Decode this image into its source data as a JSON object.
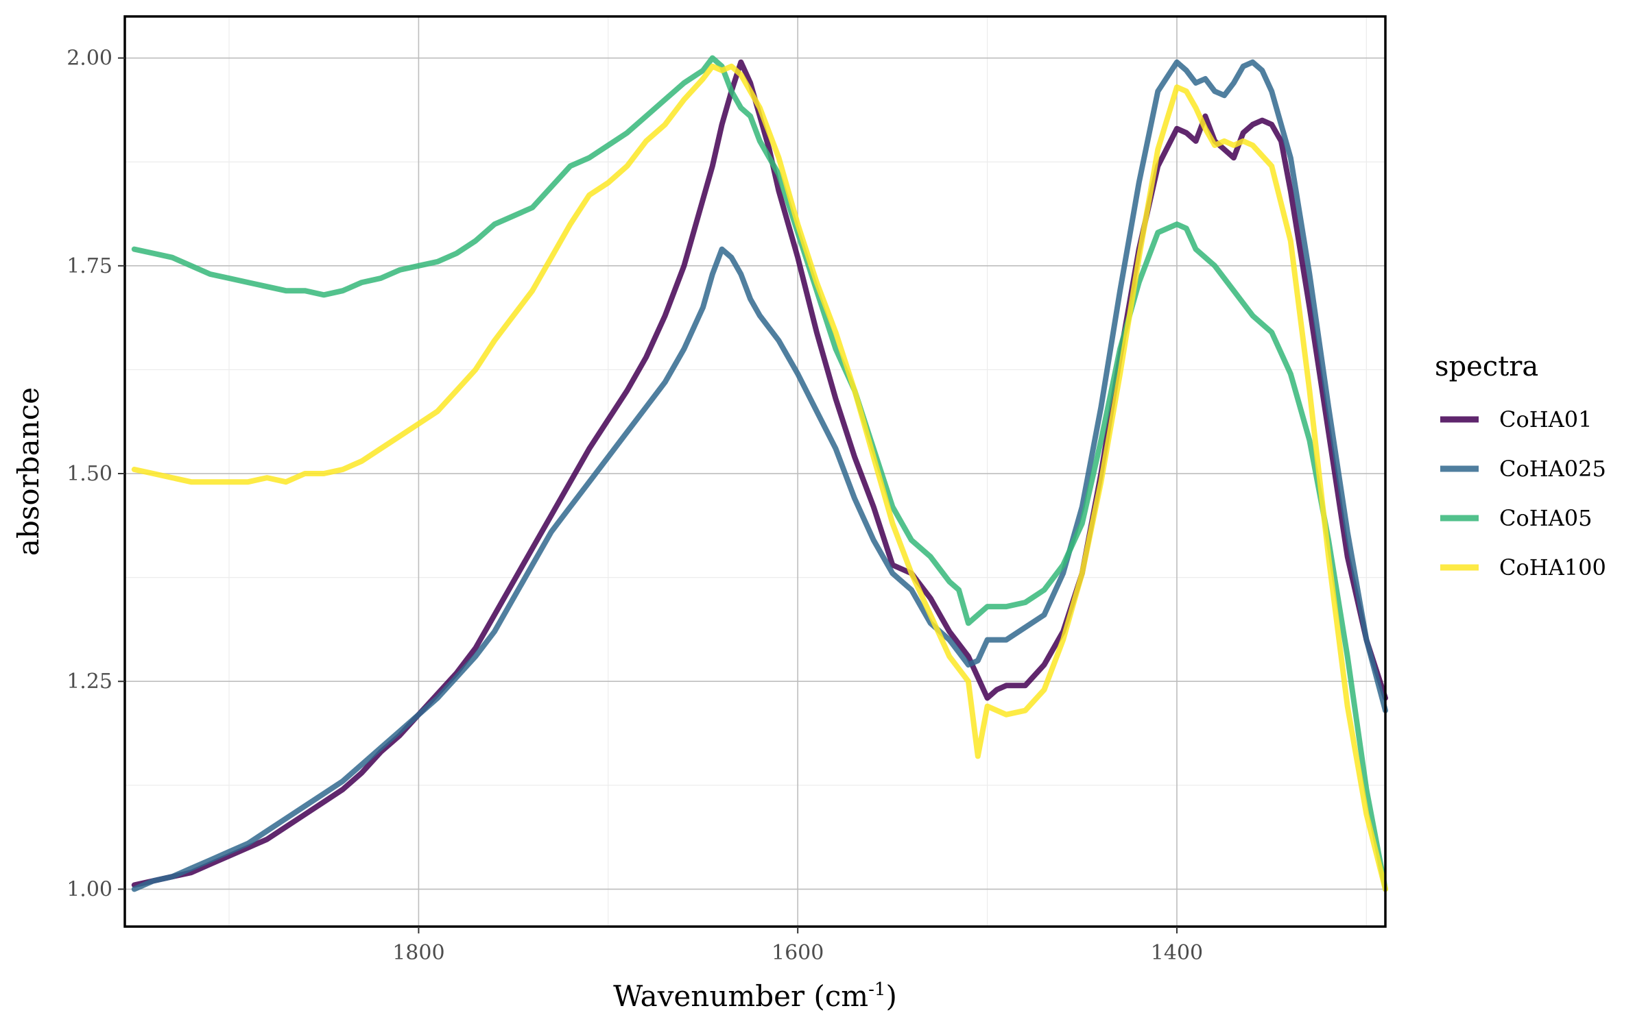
{
  "chart_data": {
    "type": "line",
    "title": "",
    "xlabel": "Wavenumber (cm",
    "xlabel_sup": "-1",
    "xlabel_suffix": ")",
    "ylabel": "absorbance",
    "xlim": [
      1955,
      1290
    ],
    "ylim": [
      0.955,
      2.05
    ],
    "x_reversed": true,
    "x_ticks": [
      1800,
      1600,
      1400
    ],
    "x_tick_labels": [
      "1800",
      "1600",
      "1400"
    ],
    "y_ticks": [
      1.0,
      1.25,
      1.5,
      1.75,
      2.0
    ],
    "y_tick_labels": [
      "1.00",
      "1.25",
      "1.50",
      "1.75",
      "2.00"
    ],
    "grid": true,
    "legend": {
      "title": "spectra",
      "position": "right"
    },
    "series": [
      {
        "name": "CoHA01",
        "color": "#440154",
        "points": [
          [
            1950,
            1.005
          ],
          [
            1940,
            1.01
          ],
          [
            1930,
            1.015
          ],
          [
            1920,
            1.02
          ],
          [
            1910,
            1.03
          ],
          [
            1900,
            1.04
          ],
          [
            1890,
            1.05
          ],
          [
            1880,
            1.06
          ],
          [
            1870,
            1.075
          ],
          [
            1860,
            1.09
          ],
          [
            1850,
            1.105
          ],
          [
            1840,
            1.12
          ],
          [
            1830,
            1.14
          ],
          [
            1820,
            1.165
          ],
          [
            1810,
            1.185
          ],
          [
            1800,
            1.21
          ],
          [
            1790,
            1.235
          ],
          [
            1780,
            1.26
          ],
          [
            1770,
            1.29
          ],
          [
            1760,
            1.33
          ],
          [
            1750,
            1.37
          ],
          [
            1740,
            1.41
          ],
          [
            1730,
            1.45
          ],
          [
            1720,
            1.49
          ],
          [
            1710,
            1.53
          ],
          [
            1700,
            1.565
          ],
          [
            1690,
            1.6
          ],
          [
            1680,
            1.64
          ],
          [
            1670,
            1.69
          ],
          [
            1660,
            1.75
          ],
          [
            1650,
            1.83
          ],
          [
            1645,
            1.87
          ],
          [
            1640,
            1.92
          ],
          [
            1635,
            1.96
          ],
          [
            1630,
            1.995
          ],
          [
            1625,
            1.97
          ],
          [
            1620,
            1.93
          ],
          [
            1615,
            1.89
          ],
          [
            1610,
            1.84
          ],
          [
            1600,
            1.76
          ],
          [
            1590,
            1.67
          ],
          [
            1580,
            1.59
          ],
          [
            1570,
            1.52
          ],
          [
            1560,
            1.46
          ],
          [
            1550,
            1.39
          ],
          [
            1540,
            1.38
          ],
          [
            1530,
            1.35
          ],
          [
            1520,
            1.31
          ],
          [
            1510,
            1.28
          ],
          [
            1505,
            1.255
          ],
          [
            1500,
            1.23
          ],
          [
            1495,
            1.24
          ],
          [
            1490,
            1.245
          ],
          [
            1480,
            1.245
          ],
          [
            1470,
            1.27
          ],
          [
            1460,
            1.31
          ],
          [
            1450,
            1.38
          ],
          [
            1440,
            1.5
          ],
          [
            1430,
            1.64
          ],
          [
            1420,
            1.77
          ],
          [
            1410,
            1.87
          ],
          [
            1400,
            1.915
          ],
          [
            1395,
            1.91
          ],
          [
            1390,
            1.9
          ],
          [
            1385,
            1.93
          ],
          [
            1380,
            1.9
          ],
          [
            1375,
            1.89
          ],
          [
            1370,
            1.88
          ],
          [
            1365,
            1.91
          ],
          [
            1360,
            1.92
          ],
          [
            1355,
            1.925
          ],
          [
            1350,
            1.92
          ],
          [
            1345,
            1.9
          ],
          [
            1340,
            1.84
          ],
          [
            1330,
            1.7
          ],
          [
            1320,
            1.55
          ],
          [
            1310,
            1.4
          ],
          [
            1300,
            1.3
          ],
          [
            1290,
            1.23
          ]
        ]
      },
      {
        "name": "CoHA025",
        "color": "#31688e",
        "points": [
          [
            1950,
            1.0
          ],
          [
            1940,
            1.01
          ],
          [
            1930,
            1.015
          ],
          [
            1920,
            1.025
          ],
          [
            1910,
            1.035
          ],
          [
            1900,
            1.045
          ],
          [
            1890,
            1.055
          ],
          [
            1880,
            1.07
          ],
          [
            1870,
            1.085
          ],
          [
            1860,
            1.1
          ],
          [
            1850,
            1.115
          ],
          [
            1840,
            1.13
          ],
          [
            1830,
            1.15
          ],
          [
            1820,
            1.17
          ],
          [
            1810,
            1.19
          ],
          [
            1800,
            1.21
          ],
          [
            1790,
            1.23
          ],
          [
            1780,
            1.255
          ],
          [
            1770,
            1.28
          ],
          [
            1760,
            1.31
          ],
          [
            1750,
            1.35
          ],
          [
            1740,
            1.39
          ],
          [
            1730,
            1.43
          ],
          [
            1720,
            1.46
          ],
          [
            1710,
            1.49
          ],
          [
            1700,
            1.52
          ],
          [
            1690,
            1.55
          ],
          [
            1680,
            1.58
          ],
          [
            1670,
            1.61
          ],
          [
            1660,
            1.65
          ],
          [
            1650,
            1.7
          ],
          [
            1645,
            1.74
          ],
          [
            1640,
            1.77
          ],
          [
            1635,
            1.76
          ],
          [
            1630,
            1.74
          ],
          [
            1625,
            1.71
          ],
          [
            1620,
            1.69
          ],
          [
            1610,
            1.66
          ],
          [
            1600,
            1.62
          ],
          [
            1590,
            1.575
          ],
          [
            1580,
            1.53
          ],
          [
            1570,
            1.47
          ],
          [
            1560,
            1.42
          ],
          [
            1550,
            1.38
          ],
          [
            1540,
            1.36
          ],
          [
            1530,
            1.32
          ],
          [
            1520,
            1.3
          ],
          [
            1510,
            1.27
          ],
          [
            1505,
            1.275
          ],
          [
            1500,
            1.3
          ],
          [
            1490,
            1.3
          ],
          [
            1480,
            1.315
          ],
          [
            1470,
            1.33
          ],
          [
            1460,
            1.38
          ],
          [
            1450,
            1.46
          ],
          [
            1440,
            1.58
          ],
          [
            1430,
            1.72
          ],
          [
            1420,
            1.85
          ],
          [
            1410,
            1.96
          ],
          [
            1400,
            1.995
          ],
          [
            1395,
            1.985
          ],
          [
            1390,
            1.97
          ],
          [
            1385,
            1.975
          ],
          [
            1380,
            1.96
          ],
          [
            1375,
            1.955
          ],
          [
            1370,
            1.97
          ],
          [
            1365,
            1.99
          ],
          [
            1360,
            1.995
          ],
          [
            1355,
            1.985
          ],
          [
            1350,
            1.96
          ],
          [
            1340,
            1.88
          ],
          [
            1330,
            1.74
          ],
          [
            1320,
            1.58
          ],
          [
            1310,
            1.43
          ],
          [
            1300,
            1.3
          ],
          [
            1290,
            1.215
          ]
        ]
      },
      {
        "name": "CoHA05",
        "color": "#35b779",
        "points": [
          [
            1950,
            1.77
          ],
          [
            1940,
            1.765
          ],
          [
            1930,
            1.76
          ],
          [
            1920,
            1.75
          ],
          [
            1910,
            1.74
          ],
          [
            1900,
            1.735
          ],
          [
            1890,
            1.73
          ],
          [
            1880,
            1.725
          ],
          [
            1870,
            1.72
          ],
          [
            1860,
            1.72
          ],
          [
            1850,
            1.715
          ],
          [
            1840,
            1.72
          ],
          [
            1830,
            1.73
          ],
          [
            1820,
            1.735
          ],
          [
            1810,
            1.745
          ],
          [
            1800,
            1.75
          ],
          [
            1790,
            1.755
          ],
          [
            1780,
            1.765
          ],
          [
            1770,
            1.78
          ],
          [
            1760,
            1.8
          ],
          [
            1750,
            1.81
          ],
          [
            1740,
            1.82
          ],
          [
            1730,
            1.845
          ],
          [
            1720,
            1.87
          ],
          [
            1710,
            1.88
          ],
          [
            1700,
            1.895
          ],
          [
            1690,
            1.91
          ],
          [
            1680,
            1.93
          ],
          [
            1670,
            1.95
          ],
          [
            1660,
            1.97
          ],
          [
            1650,
            1.985
          ],
          [
            1645,
            2.0
          ],
          [
            1640,
            1.99
          ],
          [
            1635,
            1.96
          ],
          [
            1630,
            1.94
          ],
          [
            1625,
            1.93
          ],
          [
            1620,
            1.9
          ],
          [
            1610,
            1.86
          ],
          [
            1600,
            1.79
          ],
          [
            1590,
            1.72
          ],
          [
            1580,
            1.65
          ],
          [
            1570,
            1.6
          ],
          [
            1560,
            1.53
          ],
          [
            1550,
            1.46
          ],
          [
            1540,
            1.42
          ],
          [
            1530,
            1.4
          ],
          [
            1520,
            1.37
          ],
          [
            1515,
            1.36
          ],
          [
            1510,
            1.32
          ],
          [
            1505,
            1.33
          ],
          [
            1500,
            1.34
          ],
          [
            1490,
            1.34
          ],
          [
            1480,
            1.345
          ],
          [
            1470,
            1.36
          ],
          [
            1460,
            1.39
          ],
          [
            1450,
            1.44
          ],
          [
            1440,
            1.54
          ],
          [
            1430,
            1.65
          ],
          [
            1420,
            1.73
          ],
          [
            1410,
            1.79
          ],
          [
            1400,
            1.8
          ],
          [
            1395,
            1.795
          ],
          [
            1390,
            1.77
          ],
          [
            1380,
            1.75
          ],
          [
            1370,
            1.72
          ],
          [
            1360,
            1.69
          ],
          [
            1350,
            1.67
          ],
          [
            1340,
            1.62
          ],
          [
            1330,
            1.54
          ],
          [
            1320,
            1.42
          ],
          [
            1310,
            1.28
          ],
          [
            1300,
            1.12
          ],
          [
            1290,
            1.0
          ]
        ]
      },
      {
        "name": "CoHA100",
        "color": "#fde725",
        "points": [
          [
            1950,
            1.505
          ],
          [
            1940,
            1.5
          ],
          [
            1930,
            1.495
          ],
          [
            1920,
            1.49
          ],
          [
            1910,
            1.49
          ],
          [
            1900,
            1.49
          ],
          [
            1890,
            1.49
          ],
          [
            1880,
            1.495
          ],
          [
            1870,
            1.49
          ],
          [
            1860,
            1.5
          ],
          [
            1850,
            1.5
          ],
          [
            1840,
            1.505
          ],
          [
            1830,
            1.515
          ],
          [
            1820,
            1.53
          ],
          [
            1810,
            1.545
          ],
          [
            1800,
            1.56
          ],
          [
            1790,
            1.575
          ],
          [
            1780,
            1.6
          ],
          [
            1770,
            1.625
          ],
          [
            1760,
            1.66
          ],
          [
            1750,
            1.69
          ],
          [
            1740,
            1.72
          ],
          [
            1730,
            1.76
          ],
          [
            1720,
            1.8
          ],
          [
            1710,
            1.835
          ],
          [
            1700,
            1.85
          ],
          [
            1690,
            1.87
          ],
          [
            1680,
            1.9
          ],
          [
            1670,
            1.92
          ],
          [
            1660,
            1.95
          ],
          [
            1650,
            1.975
          ],
          [
            1645,
            1.99
          ],
          [
            1640,
            1.985
          ],
          [
            1635,
            1.99
          ],
          [
            1630,
            1.98
          ],
          [
            1625,
            1.96
          ],
          [
            1620,
            1.94
          ],
          [
            1610,
            1.88
          ],
          [
            1600,
            1.8
          ],
          [
            1590,
            1.73
          ],
          [
            1580,
            1.67
          ],
          [
            1570,
            1.6
          ],
          [
            1560,
            1.52
          ],
          [
            1550,
            1.44
          ],
          [
            1540,
            1.38
          ],
          [
            1530,
            1.33
          ],
          [
            1520,
            1.28
          ],
          [
            1515,
            1.265
          ],
          [
            1510,
            1.25
          ],
          [
            1505,
            1.16
          ],
          [
            1500,
            1.22
          ],
          [
            1490,
            1.21
          ],
          [
            1480,
            1.215
          ],
          [
            1470,
            1.24
          ],
          [
            1460,
            1.3
          ],
          [
            1450,
            1.38
          ],
          [
            1440,
            1.49
          ],
          [
            1430,
            1.62
          ],
          [
            1420,
            1.76
          ],
          [
            1410,
            1.89
          ],
          [
            1400,
            1.965
          ],
          [
            1395,
            1.96
          ],
          [
            1390,
            1.94
          ],
          [
            1385,
            1.915
          ],
          [
            1380,
            1.895
          ],
          [
            1375,
            1.9
          ],
          [
            1370,
            1.895
          ],
          [
            1365,
            1.9
          ],
          [
            1360,
            1.895
          ],
          [
            1350,
            1.87
          ],
          [
            1340,
            1.78
          ],
          [
            1330,
            1.6
          ],
          [
            1320,
            1.4
          ],
          [
            1310,
            1.22
          ],
          [
            1300,
            1.09
          ],
          [
            1290,
            1.0
          ]
        ]
      }
    ]
  }
}
